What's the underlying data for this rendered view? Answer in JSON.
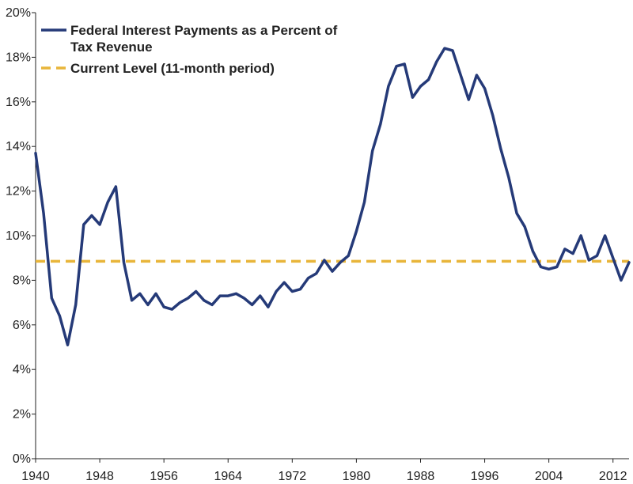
{
  "chart_data": {
    "type": "line",
    "title": "",
    "xlabel": "",
    "ylabel": "",
    "xlim": [
      1940,
      2014
    ],
    "ylim": [
      0,
      20
    ],
    "x_ticks": [
      "1940",
      "1948",
      "1956",
      "1964",
      "1972",
      "1980",
      "1988",
      "1996",
      "2004",
      "2012"
    ],
    "y_ticks": [
      "0%",
      "2%",
      "4%",
      "6%",
      "8%",
      "10%",
      "12%",
      "14%",
      "16%",
      "18%",
      "20%"
    ],
    "grid": false,
    "legend_position": "top-left",
    "series": [
      {
        "name": "Federal Interest Payments as a Percent of Tax Revenue",
        "color": "#253a78",
        "style": "solid",
        "x": [
          1940,
          1941,
          1942,
          1943,
          1944,
          1945,
          1946,
          1947,
          1948,
          1949,
          1950,
          1951,
          1952,
          1953,
          1954,
          1955,
          1956,
          1957,
          1958,
          1959,
          1960,
          1961,
          1962,
          1963,
          1964,
          1965,
          1966,
          1967,
          1968,
          1969,
          1970,
          1971,
          1972,
          1973,
          1974,
          1975,
          1976,
          1977,
          1978,
          1979,
          1980,
          1981,
          1982,
          1983,
          1984,
          1985,
          1986,
          1987,
          1988,
          1989,
          1990,
          1991,
          1992,
          1993,
          1994,
          1995,
          1996,
          1997,
          1998,
          1999,
          2000,
          2001,
          2002,
          2003,
          2004,
          2005,
          2006,
          2007,
          2008,
          2009,
          2010,
          2011,
          2012,
          2013,
          2014
        ],
        "values": [
          13.7,
          11.0,
          7.2,
          6.4,
          5.1,
          6.9,
          10.5,
          10.9,
          10.5,
          11.5,
          12.2,
          8.8,
          7.1,
          7.4,
          6.9,
          7.4,
          6.8,
          6.7,
          7.0,
          7.2,
          7.5,
          7.1,
          6.9,
          7.3,
          7.3,
          7.4,
          7.2,
          6.9,
          7.3,
          6.8,
          7.5,
          7.9,
          7.5,
          7.6,
          8.1,
          8.3,
          8.9,
          8.4,
          8.8,
          9.1,
          10.2,
          11.5,
          13.8,
          15.0,
          16.7,
          17.6,
          17.7,
          16.2,
          16.7,
          17.0,
          17.8,
          18.4,
          18.3,
          17.2,
          16.1,
          17.2,
          16.6,
          15.4,
          13.9,
          12.6,
          11.0,
          10.4,
          9.3,
          8.6,
          8.5,
          8.6,
          9.4,
          9.2,
          10.0,
          8.9,
          9.1,
          10.0,
          9.0,
          8.0,
          8.8
        ]
      },
      {
        "name": "Current Level (11-month period)",
        "color": "#e8b53a",
        "style": "dashed",
        "value": 8.85
      }
    ]
  }
}
